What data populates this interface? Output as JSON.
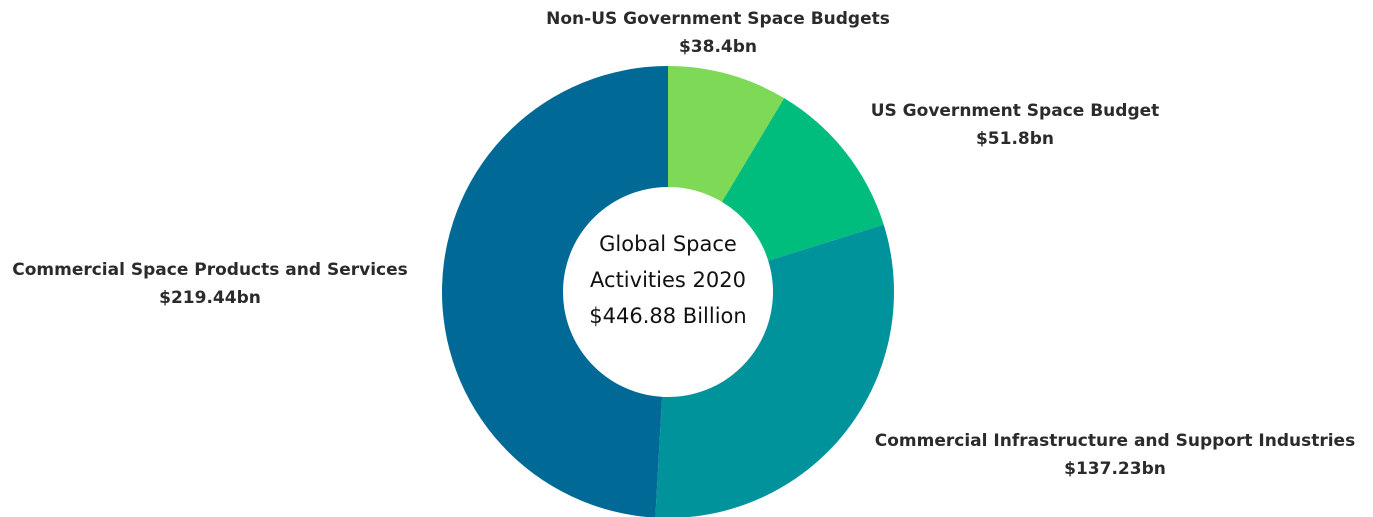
{
  "chart_data": {
    "type": "donut",
    "center_text": [
      "Global Space",
      "Activities 2020",
      "$446.88 Billion"
    ],
    "total": 446.88,
    "slices": [
      {
        "name": "Non-US Government Space Budgets",
        "value": 38.4,
        "label_value": "$38.4bn",
        "color": "#7ed957"
      },
      {
        "name": "US Government Space Budget",
        "value": 51.8,
        "label_value": "$51.8bn",
        "color": "#00bc7d"
      },
      {
        "name": "Commercial Infrastructure and Support Industries",
        "value": 137.23,
        "label_value": "$137.23bn",
        "color": "#00939c"
      },
      {
        "name": "Commercial Space Products and Services",
        "value": 219.44,
        "label_value": "$219.44bn",
        "color": "#006996"
      }
    ]
  }
}
